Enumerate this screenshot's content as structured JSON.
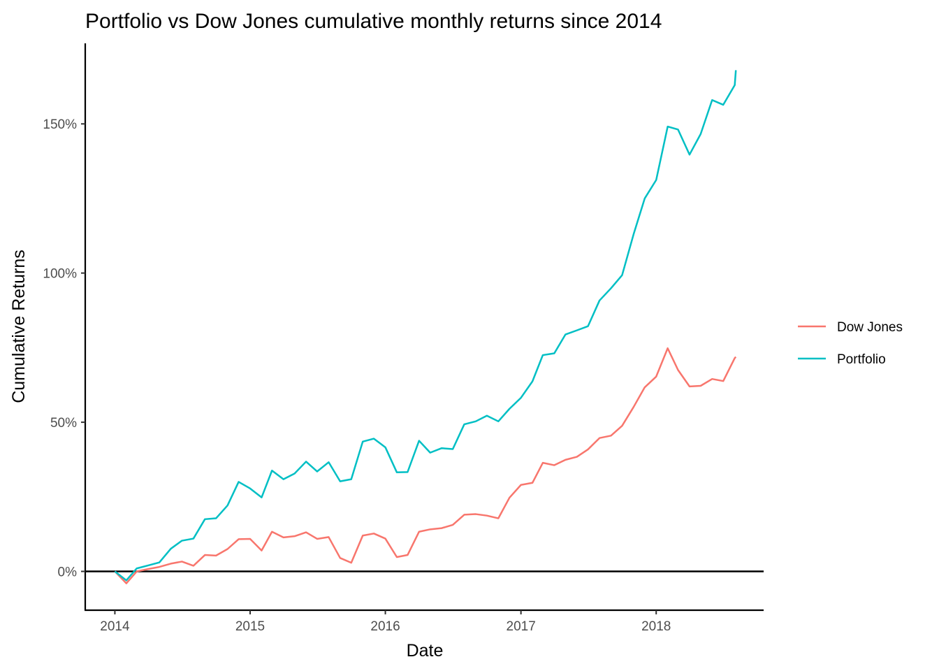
{
  "chart_data": {
    "type": "line",
    "title": "Portfolio vs Dow Jones cumulative monthly returns since 2014",
    "xlabel": "Date",
    "ylabel": "Cumulative Returns",
    "x_ticks": [
      "2014",
      "2015",
      "2016",
      "2017",
      "2018"
    ],
    "y_ticks": [
      {
        "value": 0,
        "label": "0%"
      },
      {
        "value": 50,
        "label": "50%"
      },
      {
        "value": 100,
        "label": "100%"
      },
      {
        "value": 150,
        "label": "150%"
      }
    ],
    "xlim": [
      "2013-10-13",
      "2018-10-18"
    ],
    "ylim": [
      -13,
      177
    ],
    "y_unit": "%",
    "grid": false,
    "reference_line_y": 0,
    "legend_position": "right",
    "x": [
      "2014-01-01",
      "2014-02-01",
      "2014-03-01",
      "2014-04-01",
      "2014-05-01",
      "2014-06-01",
      "2014-07-01",
      "2014-08-01",
      "2014-09-01",
      "2014-10-01",
      "2014-11-01",
      "2014-12-01",
      "2015-01-01",
      "2015-02-01",
      "2015-03-01",
      "2015-04-01",
      "2015-05-01",
      "2015-06-01",
      "2015-07-01",
      "2015-08-01",
      "2015-09-01",
      "2015-10-01",
      "2015-11-01",
      "2015-12-01",
      "2016-01-01",
      "2016-02-01",
      "2016-03-01",
      "2016-04-01",
      "2016-05-01",
      "2016-06-01",
      "2016-07-01",
      "2016-08-01",
      "2016-09-01",
      "2016-10-01",
      "2016-11-01",
      "2016-12-01",
      "2017-01-01",
      "2017-02-01",
      "2017-03-01",
      "2017-04-01",
      "2017-05-01",
      "2017-06-01",
      "2017-07-01",
      "2017-08-01",
      "2017-09-01",
      "2017-10-01",
      "2017-11-01",
      "2017-12-01",
      "2018-01-01",
      "2018-02-01",
      "2018-03-01",
      "2018-04-01",
      "2018-05-01",
      "2018-06-01",
      "2018-07-01",
      "2018-08-01",
      "2018-08-04"
    ],
    "series": [
      {
        "name": "Dow Jones",
        "color": "#F8766D",
        "values": [
          0,
          -4,
          0,
          0.8,
          1.5,
          2.6,
          3.3,
          1.9,
          5.5,
          5.3,
          7.5,
          10.8,
          10.9,
          7.0,
          13.3,
          11.4,
          11.8,
          13.1,
          10.9,
          11.5,
          4.5,
          2.9,
          12.0,
          12.7,
          11.0,
          4.8,
          5.5,
          13.3,
          14.1,
          14.5,
          15.6,
          19.0,
          19.2,
          18.7,
          17.8,
          24.7,
          29.0,
          29.7,
          36.4,
          35.6,
          37.4,
          38.4,
          40.9,
          44.7,
          45.5,
          48.8,
          55.1,
          61.7,
          65.3,
          74.8,
          67.5,
          62.0,
          62.2,
          64.5,
          63.8,
          71.5,
          71.9
        ]
      },
      {
        "name": "Portfolio",
        "color": "#00BFC4",
        "values": [
          0,
          -3,
          1.0,
          2.0,
          3.0,
          7.6,
          10.3,
          11.0,
          17.5,
          17.8,
          22.1,
          30.0,
          27.8,
          24.8,
          33.8,
          30.9,
          32.8,
          36.8,
          33.5,
          36.6,
          30.2,
          30.9,
          43.5,
          44.5,
          41.6,
          33.2,
          33.3,
          43.8,
          39.8,
          41.3,
          41.0,
          49.3,
          50.3,
          52.2,
          50.3,
          54.5,
          58.2,
          63.7,
          72.5,
          73.1,
          79.4,
          80.8,
          82.2,
          90.8,
          94.9,
          99.3,
          113.0,
          125.0,
          131.2,
          149.1,
          148.1,
          139.7,
          146.6,
          158.0,
          156.4,
          163.0,
          168.0
        ]
      }
    ]
  }
}
